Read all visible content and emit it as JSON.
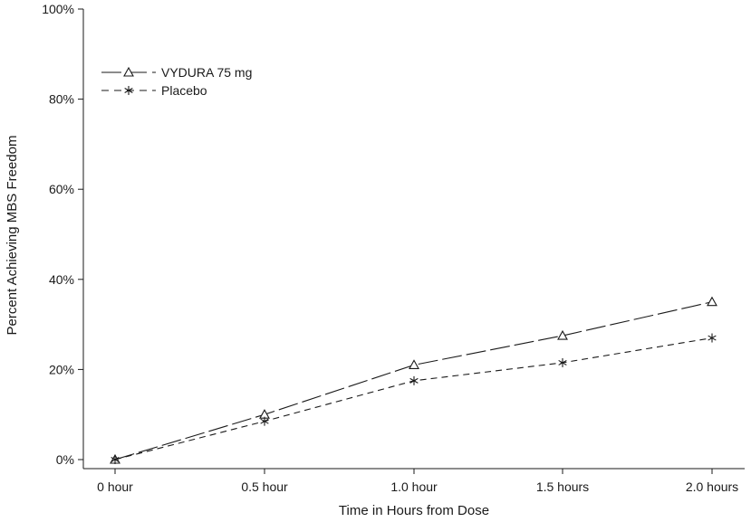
{
  "chart_data": {
    "type": "line",
    "xlabel": "Time in Hours from Dose",
    "ylabel": "Percent Achieving MBS Freedom",
    "categories": [
      "0 hour",
      "0.5 hour",
      "1.0 hour",
      "1.5 hours",
      "2.0 hours"
    ],
    "y_ticks": [
      "0%",
      "20%",
      "40%",
      "60%",
      "80%",
      "100%"
    ],
    "ylim": [
      0,
      100
    ],
    "grid": false,
    "legend_position": "top-left",
    "series": [
      {
        "name": "VYDURA 75 mg",
        "values": [
          0,
          10,
          21,
          27.5,
          35
        ],
        "marker": "triangle",
        "line_style": "long-dash",
        "color": "#1a1a1a"
      },
      {
        "name": "Placebo",
        "values": [
          0,
          8.5,
          17.5,
          21.5,
          27
        ],
        "marker": "asterisk",
        "line_style": "short-dash",
        "color": "#1a1a1a"
      }
    ]
  }
}
